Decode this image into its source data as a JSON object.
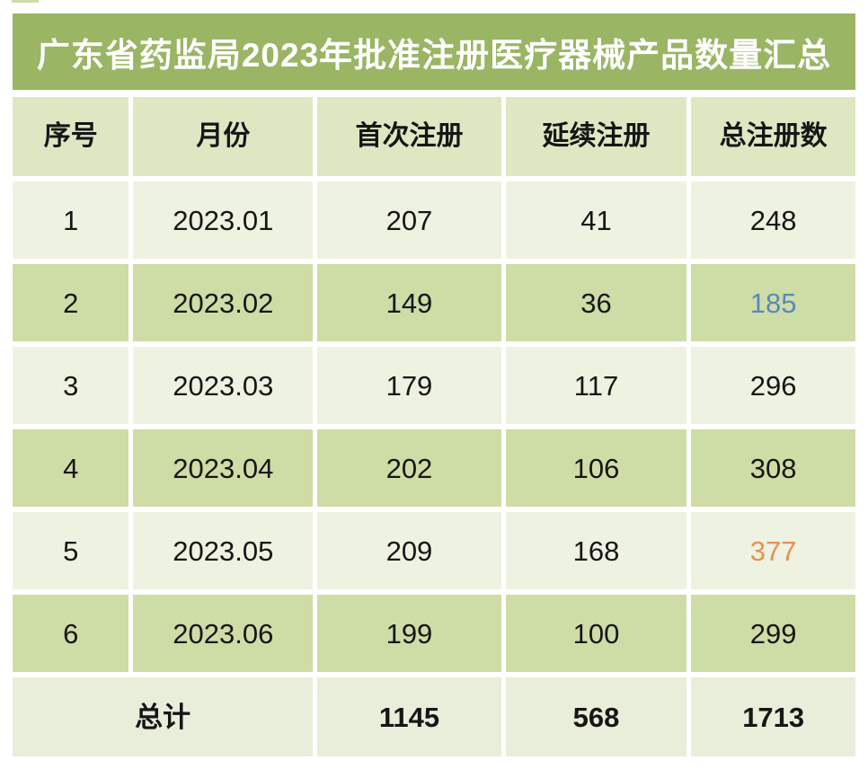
{
  "title": "广东省药监局2023年批准注册医疗器械产品数量汇总",
  "theme": {
    "page_bg": "#ffffff",
    "title_bg": "#9ab564",
    "title_text": "#ffffff",
    "header_bg": "#dde8c3",
    "row_light_bg": "#eef2e1",
    "row_dark_bg": "#cedca6",
    "total_bg": "#e9eeda",
    "text_color": "#161616",
    "highlight_blue": "#5b88bb",
    "highlight_orange": "#e8914f"
  },
  "table": {
    "headers": [
      "序号",
      "月份",
      "首次注册",
      "延续注册",
      "总注册数"
    ],
    "rows": [
      {
        "no": "1",
        "month": "2023.01",
        "first": "207",
        "renewal": "41",
        "total": "248"
      },
      {
        "no": "2",
        "month": "2023.02",
        "first": "149",
        "renewal": "36",
        "total": "185"
      },
      {
        "no": "3",
        "month": "2023.03",
        "first": "179",
        "renewal": "117",
        "total": "296"
      },
      {
        "no": "4",
        "month": "2023.04",
        "first": "202",
        "renewal": "106",
        "total": "308"
      },
      {
        "no": "5",
        "month": "2023.05",
        "first": "209",
        "renewal": "168",
        "total": "377"
      },
      {
        "no": "6",
        "month": "2023.06",
        "first": "199",
        "renewal": "100",
        "total": "299"
      }
    ],
    "total_row": {
      "label": "总计",
      "first": "1145",
      "renewal": "568",
      "total": "1713"
    }
  },
  "chart_data": {
    "type": "table",
    "title": "广东省药监局2023年批准注册医疗器械产品数量汇总",
    "columns": [
      "序号",
      "月份",
      "首次注册",
      "延续注册",
      "总注册数"
    ],
    "rows": [
      [
        1,
        "2023.01",
        207,
        41,
        248
      ],
      [
        2,
        "2023.02",
        149,
        36,
        185
      ],
      [
        3,
        "2023.03",
        179,
        117,
        296
      ],
      [
        4,
        "2023.04",
        202,
        106,
        308
      ],
      [
        5,
        "2023.05",
        209,
        168,
        377
      ],
      [
        6,
        "2023.06",
        199,
        100,
        299
      ]
    ],
    "totals": {
      "label": "总计",
      "first_registration": 1145,
      "renewal_registration": 568,
      "total_registration": 1713
    },
    "highlighted_cells": [
      {
        "row": 2,
        "column": "总注册数",
        "value": 185,
        "color": "#5b88bb"
      },
      {
        "row": 5,
        "column": "总注册数",
        "value": 377,
        "color": "#e8914f"
      }
    ],
    "layout": {
      "striped_rows": true,
      "stripe_colors": [
        "#eef2e1",
        "#cedca6"
      ],
      "header_style": "light-green bold",
      "title_style": "white on olive-green banner"
    }
  }
}
